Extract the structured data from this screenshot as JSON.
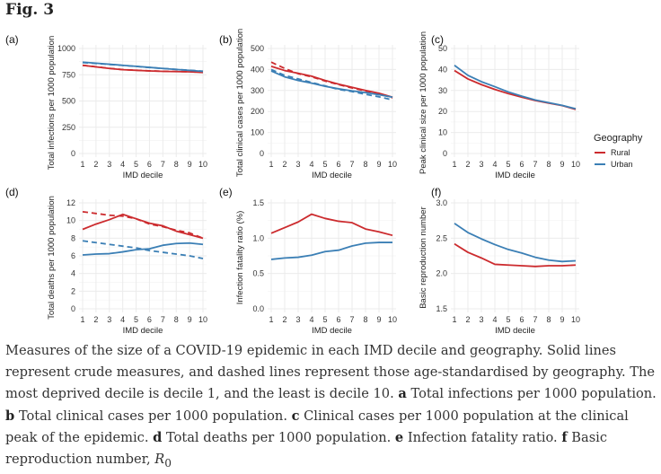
{
  "figure_title": "Fig. 3",
  "colors": {
    "rural": "#cc2b2e",
    "urban": "#3b7fb5"
  },
  "legend": {
    "title": "Geography",
    "items": [
      "Rural",
      "Urban"
    ]
  },
  "chart_data": [
    {
      "panel": "(a)",
      "type": "line",
      "xlabel": "IMD decile",
      "ylabel": "Total infections per 1000 population",
      "x": [
        1,
        2,
        3,
        4,
        5,
        6,
        7,
        8,
        9,
        10
      ],
      "ylim": [
        0,
        1000
      ],
      "yticks": [
        0,
        250,
        500,
        750,
        1000
      ],
      "series": [
        {
          "name": "Rural",
          "style": "solid",
          "values": [
            840,
            825,
            810,
            798,
            792,
            786,
            782,
            780,
            778,
            772
          ]
        },
        {
          "name": "Rural",
          "style": "dashed",
          "values": [
            840,
            826,
            811,
            799,
            793,
            787,
            783,
            781,
            779,
            773
          ]
        },
        {
          "name": "Urban",
          "style": "solid",
          "values": [
            870,
            860,
            850,
            840,
            830,
            820,
            810,
            800,
            792,
            782
          ]
        },
        {
          "name": "Urban",
          "style": "dashed",
          "values": [
            866,
            857,
            848,
            839,
            829,
            819,
            810,
            801,
            793,
            784
          ]
        }
      ]
    },
    {
      "panel": "(b)",
      "type": "line",
      "xlabel": "IMD decile",
      "ylabel": "Total clinical cases per 1000 population",
      "x": [
        1,
        2,
        3,
        4,
        5,
        6,
        7,
        8,
        9,
        10
      ],
      "ylim": [
        0,
        500
      ],
      "yticks": [
        0,
        100,
        200,
        300,
        400,
        500
      ],
      "series": [
        {
          "name": "Rural",
          "style": "solid",
          "values": [
            415,
            395,
            382,
            368,
            348,
            330,
            315,
            300,
            287,
            268
          ]
        },
        {
          "name": "Rural",
          "style": "dashed",
          "values": [
            435,
            405,
            380,
            365,
            345,
            328,
            312,
            298,
            285,
            265
          ]
        },
        {
          "name": "Urban",
          "style": "solid",
          "values": [
            393,
            365,
            348,
            335,
            320,
            308,
            298,
            290,
            280,
            268
          ]
        },
        {
          "name": "Urban",
          "style": "dashed",
          "values": [
            400,
            372,
            355,
            338,
            322,
            305,
            295,
            282,
            270,
            255
          ]
        }
      ]
    },
    {
      "panel": "(c)",
      "type": "line",
      "xlabel": "IMD decile",
      "ylabel": "Peak clinical size per 1000 population",
      "x": [
        1,
        2,
        3,
        4,
        5,
        6,
        7,
        8,
        9,
        10
      ],
      "ylim": [
        0,
        50
      ],
      "yticks": [
        0,
        10,
        20,
        30,
        40,
        50
      ],
      "series": [
        {
          "name": "Rural",
          "style": "solid",
          "values": [
            39.5,
            35.5,
            32.8,
            30.5,
            28.5,
            26.8,
            25.2,
            24,
            22.8,
            21
          ]
        },
        {
          "name": "Urban",
          "style": "solid",
          "values": [
            42,
            37.2,
            34.2,
            31.8,
            29.3,
            27.3,
            25.5,
            24.2,
            22.9,
            21.3
          ]
        }
      ]
    },
    {
      "panel": "(d)",
      "type": "line",
      "xlabel": "IMD decile",
      "ylabel": "Total deaths per 1000 population",
      "x": [
        1,
        2,
        3,
        4,
        5,
        6,
        7,
        8,
        9,
        10
      ],
      "ylim": [
        0,
        12
      ],
      "yticks": [
        0,
        2,
        4,
        6,
        8,
        10,
        12
      ],
      "series": [
        {
          "name": "Rural",
          "style": "solid",
          "values": [
            9.0,
            9.6,
            10.1,
            10.7,
            10.2,
            9.7,
            9.4,
            8.8,
            8.4,
            8.0
          ]
        },
        {
          "name": "Rural",
          "style": "dashed",
          "values": [
            11.0,
            10.8,
            10.6,
            10.5,
            10.2,
            9.6,
            9.3,
            8.9,
            8.6,
            8.0
          ]
        },
        {
          "name": "Urban",
          "style": "solid",
          "values": [
            6.1,
            6.2,
            6.25,
            6.45,
            6.7,
            6.8,
            7.2,
            7.4,
            7.45,
            7.3
          ]
        },
        {
          "name": "Urban",
          "style": "dashed",
          "values": [
            7.7,
            7.5,
            7.3,
            7.1,
            6.9,
            6.6,
            6.4,
            6.2,
            6.0,
            5.7
          ]
        }
      ]
    },
    {
      "panel": "(e)",
      "type": "line",
      "xlabel": "IMD decile",
      "ylabel": "Infection fatality ratio (%)",
      "x": [
        1,
        2,
        3,
        4,
        5,
        6,
        7,
        8,
        9,
        10
      ],
      "ylim": [
        0,
        1.5
      ],
      "yticks": [
        "0.0",
        "0.5",
        "1.0",
        "1.5"
      ],
      "series": [
        {
          "name": "Rural",
          "style": "solid",
          "values": [
            1.07,
            1.15,
            1.23,
            1.34,
            1.28,
            1.24,
            1.22,
            1.13,
            1.09,
            1.04
          ]
        },
        {
          "name": "Urban",
          "style": "solid",
          "values": [
            0.7,
            0.72,
            0.73,
            0.76,
            0.81,
            0.83,
            0.89,
            0.93,
            0.94,
            0.94
          ]
        }
      ]
    },
    {
      "panel": "(f)",
      "type": "line",
      "xlabel": "IMD decile",
      "ylabel": "Basic reproduction number",
      "x": [
        1,
        2,
        3,
        4,
        5,
        6,
        7,
        8,
        9,
        10
      ],
      "ylim": [
        1.5,
        3.0
      ],
      "yticks": [
        "1.5",
        "2.0",
        "2.5",
        "3.0"
      ],
      "series": [
        {
          "name": "Rural",
          "style": "solid",
          "values": [
            2.42,
            2.3,
            2.22,
            2.13,
            2.12,
            2.11,
            2.1,
            2.11,
            2.11,
            2.12
          ]
        },
        {
          "name": "Urban",
          "style": "solid",
          "values": [
            2.71,
            2.58,
            2.49,
            2.41,
            2.34,
            2.29,
            2.23,
            2.19,
            2.17,
            2.18
          ]
        }
      ]
    }
  ],
  "caption": [
    {
      "t": "Measures of the size of a COVID-19 epidemic in each IMD decile and geography. Solid lines represent crude measures, and dashed lines represent those age-standardised by geography. The most deprived decile is decile 1, and the least is decile 10. "
    },
    {
      "t": "a",
      "b": true
    },
    {
      "t": " Total infections per 1000 population. "
    },
    {
      "t": "b",
      "b": true
    },
    {
      "t": " Total clinical cases per 1000 population. "
    },
    {
      "t": "c",
      "b": true
    },
    {
      "t": " Clinical cases per 1000 population at the clinical peak of the epidemic. "
    },
    {
      "t": "d",
      "b": true
    },
    {
      "t": " Total deaths per 1000 population. "
    },
    {
      "t": "e",
      "b": true
    },
    {
      "t": " Infection fatality ratio. "
    },
    {
      "t": "f",
      "b": true
    },
    {
      "t": " Basic reproduction number, "
    },
    {
      "t": "R",
      "i": true
    },
    {
      "t": "0",
      "sub": true
    }
  ]
}
